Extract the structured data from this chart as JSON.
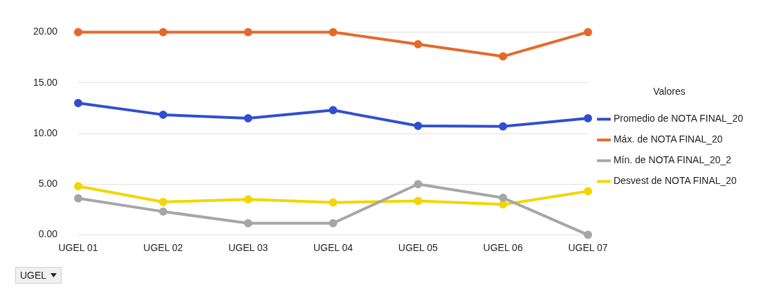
{
  "chart_data": {
    "type": "line",
    "categories": [
      "UGEL 01",
      "UGEL 02",
      "UGEL 03",
      "UGEL 04",
      "UGEL 05",
      "UGEL 06",
      "UGEL 07"
    ],
    "series": [
      {
        "name": "Promedio de NOTA FINAL_20",
        "color": "#2f4fcf",
        "values": [
          13.0,
          11.85,
          11.5,
          12.3,
          10.75,
          10.7,
          11.5
        ]
      },
      {
        "name": "Máx. de NOTA FINAL_20",
        "color": "#e5692a",
        "values": [
          20,
          20,
          20,
          20,
          18.8,
          17.6,
          20
        ]
      },
      {
        "name": "Mín. de NOTA FINAL_20_2",
        "color": "#a6a6a6",
        "values": [
          3.6,
          2.3,
          1.15,
          1.15,
          5.0,
          3.65,
          0
        ]
      },
      {
        "name": "Desvest de NOTA FINAL_20",
        "color": "#f2d600",
        "values": [
          4.8,
          3.25,
          3.5,
          3.2,
          3.35,
          3.0,
          4.3
        ]
      }
    ],
    "ylim": [
      0,
      20
    ],
    "yticks": [
      {
        "value": 0,
        "label": "0.00"
      },
      {
        "value": 5,
        "label": "5.00"
      },
      {
        "value": 10,
        "label": "10.00"
      },
      {
        "value": 15,
        "label": "15.00"
      },
      {
        "value": 20,
        "label": "20.00"
      }
    ],
    "legend_title": "Valores",
    "legend": "right",
    "grid": "y",
    "marker": "circle",
    "line_style": "solid",
    "xlabel": "UGEL"
  }
}
